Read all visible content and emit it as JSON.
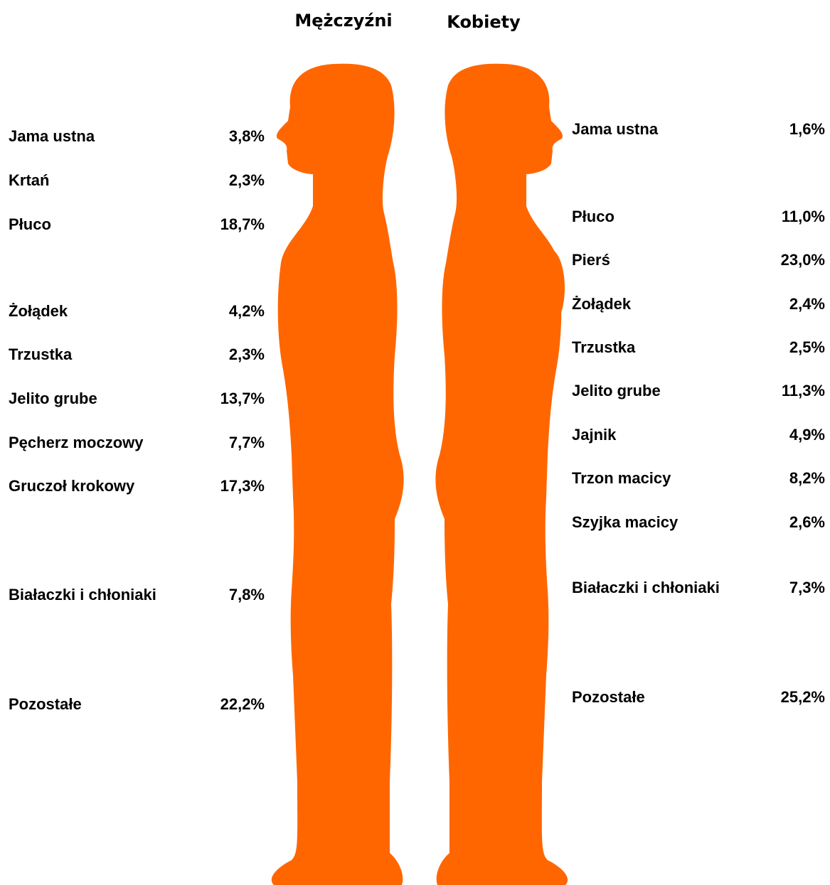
{
  "men": {
    "title": "Mężczyźni",
    "rows": [
      {
        "label": "Jama ustna",
        "value": "3,8%"
      },
      {
        "label": "Krtań",
        "value": "2,3%"
      },
      {
        "label": "Płuco",
        "value": "18,7%"
      },
      {
        "label": "Żołądek",
        "value": "4,2%"
      },
      {
        "label": "Trzustka",
        "value": "2,3%"
      },
      {
        "label": "Jelito grube",
        "value": "13,7%"
      },
      {
        "label": "Pęcherz moczowy",
        "value": "7,7%"
      },
      {
        "label": "Gruczoł krokowy",
        "value": "17,3%"
      },
      {
        "label": "Białaczki i chłoniaki",
        "value": "7,8%"
      },
      {
        "label": "Pozostałe",
        "value": "22,2%"
      }
    ]
  },
  "women": {
    "title": "Kobiety",
    "rows": [
      {
        "label": "Jama ustna",
        "value": "1,6%"
      },
      {
        "label": "Płuco",
        "value": "11,0%"
      },
      {
        "label": "Pierś",
        "value": "23,0%"
      },
      {
        "label": "Żołądek",
        "value": "2,4%"
      },
      {
        "label": "Trzustka",
        "value": "2,5%"
      },
      {
        "label": "Jelito grube",
        "value": "11,3%"
      },
      {
        "label": "Jajnik",
        "value": "4,9%"
      },
      {
        "label": "Trzon macicy",
        "value": "8,2%"
      },
      {
        "label": "Szyjka macicy",
        "value": "2,6%"
      },
      {
        "label": "Białaczki i chłoniaki",
        "value": "7,3%"
      },
      {
        "label": "Pozostałe",
        "value": "25,2%"
      }
    ]
  }
}
